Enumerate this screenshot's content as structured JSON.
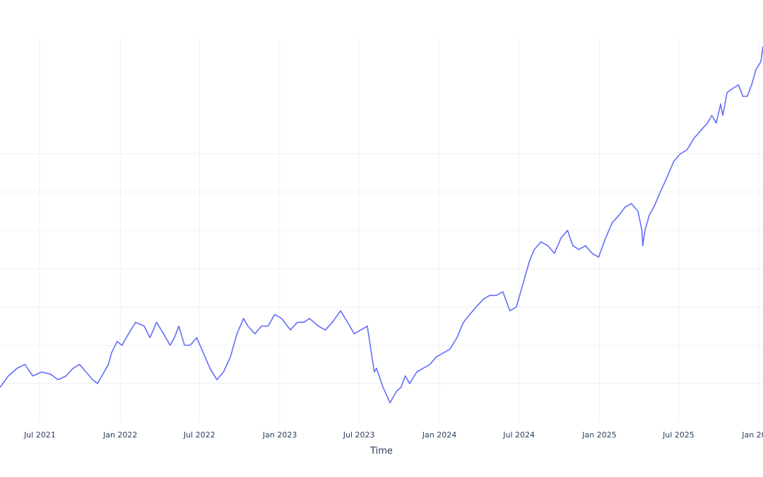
{
  "chart_data": {
    "type": "line",
    "title": "",
    "xlabel": "Time",
    "ylabel": "",
    "x_ticks": [
      {
        "date": "2021-07-01",
        "label": "Jul 2021"
      },
      {
        "date": "2022-01-01",
        "label": "Jan 2022"
      },
      {
        "date": "2022-07-01",
        "label": "Jul 2022"
      },
      {
        "date": "2023-01-01",
        "label": "Jan 2023"
      },
      {
        "date": "2023-07-01",
        "label": "Jul 2023"
      },
      {
        "date": "2024-01-01",
        "label": "Jan 2024"
      },
      {
        "date": "2024-07-01",
        "label": "Jul 2024"
      },
      {
        "date": "2025-01-01",
        "label": "Jan 2025"
      },
      {
        "date": "2025-07-01",
        "label": "Jul 2025"
      },
      {
        "date": "2026-01-01",
        "label": "Jan 2026"
      }
    ],
    "xlim": [
      "2021-04-01",
      "2026-01-10"
    ],
    "ylim": [
      0,
      10
    ],
    "y_gridlines": [
      1,
      2,
      3,
      4,
      5,
      6,
      7
    ],
    "grid": true,
    "legend": "none",
    "line_color": "#636efa",
    "series": [
      {
        "x": [
          "2021-04-01",
          "2021-04-20",
          "2021-05-10",
          "2021-05-28",
          "2021-06-15",
          "2021-07-05",
          "2021-07-25",
          "2021-08-12",
          "2021-08-30",
          "2021-09-15",
          "2021-09-30",
          "2021-10-15",
          "2021-10-30",
          "2021-11-10",
          "2021-11-20",
          "2021-12-05",
          "2021-12-12",
          "2021-12-25",
          "2022-01-05",
          "2022-01-20",
          "2022-02-05",
          "2022-02-25",
          "2022-03-10",
          "2022-03-25",
          "2022-04-10",
          "2022-04-25",
          "2022-05-05",
          "2022-05-15",
          "2022-05-28",
          "2022-06-10",
          "2022-06-25",
          "2022-07-10",
          "2022-07-25",
          "2022-08-10",
          "2022-08-25",
          "2022-09-10",
          "2022-09-25",
          "2022-10-10",
          "2022-10-20",
          "2022-11-05",
          "2022-11-20",
          "2022-12-05",
          "2022-12-20",
          "2023-01-05",
          "2023-01-25",
          "2023-02-10",
          "2023-02-25",
          "2023-03-10",
          "2023-03-30",
          "2023-04-15",
          "2023-05-01",
          "2023-05-20",
          "2023-06-05",
          "2023-06-20",
          "2023-07-05",
          "2023-07-20",
          "2023-08-05",
          "2023-08-10",
          "2023-08-25",
          "2023-09-10",
          "2023-09-25",
          "2023-10-05",
          "2023-10-15",
          "2023-10-25",
          "2023-11-10",
          "2023-11-25",
          "2023-12-10",
          "2023-12-25",
          "2024-01-10",
          "2024-01-25",
          "2024-02-10",
          "2024-02-25",
          "2024-03-10",
          "2024-03-25",
          "2024-04-10",
          "2024-04-25",
          "2024-05-10",
          "2024-05-25",
          "2024-06-10",
          "2024-06-25",
          "2024-07-05",
          "2024-07-15",
          "2024-07-25",
          "2024-08-05",
          "2024-08-20",
          "2024-09-05",
          "2024-09-20",
          "2024-10-05",
          "2024-10-20",
          "2024-11-01",
          "2024-11-15",
          "2024-11-30",
          "2024-12-15",
          "2024-12-30",
          "2025-01-15",
          "2025-01-30",
          "2025-02-15",
          "2025-02-28",
          "2025-03-15",
          "2025-03-30",
          "2025-04-08",
          "2025-04-10",
          "2025-04-15",
          "2025-04-20",
          "2025-04-25",
          "2025-05-05",
          "2025-05-20",
          "2025-06-05",
          "2025-06-20",
          "2025-07-05",
          "2025-07-20",
          "2025-08-05",
          "2025-08-20",
          "2025-09-05",
          "2025-09-15",
          "2025-09-25",
          "2025-10-05",
          "2025-10-10",
          "2025-10-20",
          "2025-11-01",
          "2025-11-15",
          "2025-11-25",
          "2025-12-05",
          "2025-12-15",
          "2025-12-25",
          "2026-01-05",
          "2026-01-10"
        ],
        "values": [
          0.9,
          1.2,
          1.4,
          1.5,
          1.2,
          1.3,
          1.25,
          1.1,
          1.2,
          1.4,
          1.5,
          1.3,
          1.1,
          1.0,
          1.2,
          1.5,
          1.8,
          2.1,
          2.0,
          2.3,
          2.6,
          2.5,
          2.2,
          2.6,
          2.3,
          2.0,
          2.2,
          2.5,
          2.0,
          2.0,
          2.2,
          1.8,
          1.4,
          1.1,
          1.3,
          1.7,
          2.3,
          2.7,
          2.5,
          2.3,
          2.5,
          2.5,
          2.8,
          2.7,
          2.4,
          2.6,
          2.6,
          2.7,
          2.5,
          2.4,
          2.6,
          2.9,
          2.6,
          2.3,
          2.4,
          2.5,
          1.3,
          1.4,
          0.9,
          0.5,
          0.8,
          0.9,
          1.2,
          1.0,
          1.3,
          1.4,
          1.5,
          1.7,
          1.8,
          1.9,
          2.2,
          2.6,
          2.8,
          3.0,
          3.2,
          3.3,
          3.3,
          3.4,
          2.9,
          3.0,
          3.4,
          3.8,
          4.2,
          4.5,
          4.7,
          4.6,
          4.4,
          4.8,
          5.0,
          4.6,
          4.5,
          4.6,
          4.4,
          4.3,
          4.8,
          5.2,
          5.4,
          5.6,
          5.7,
          5.5,
          5.0,
          4.6,
          5.0,
          5.2,
          5.4,
          5.6,
          6.0,
          6.4,
          6.8,
          7.0,
          7.1,
          7.4,
          7.6,
          7.8,
          8.0,
          7.8,
          8.3,
          8.0,
          8.6,
          8.7,
          8.8,
          8.5,
          8.5,
          8.8,
          9.2,
          9.4,
          9.8
        ]
      }
    ]
  }
}
